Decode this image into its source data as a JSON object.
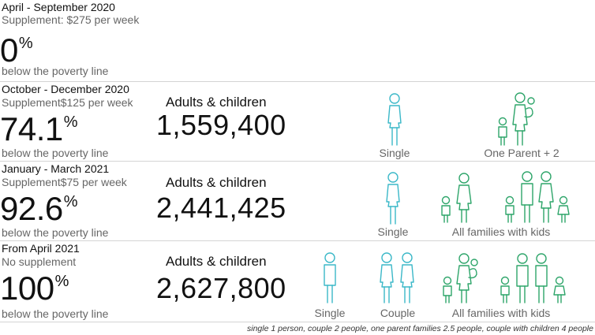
{
  "chart_data": {
    "type": "table",
    "unit_note": "below the poverty line",
    "rows": [
      {
        "period": "April - September 2020",
        "supplement": "Supplement: $275 per week",
        "percent": "0",
        "percent_unit": "%",
        "below": "below the poverty line",
        "count_header": "",
        "count": "",
        "groups": []
      },
      {
        "period": "October - December 2020",
        "supplement": "Supplement$125 per week",
        "percent": "74.1",
        "percent_unit": "%",
        "below": "below the poverty line",
        "count_header": "Adults & children",
        "count": "1,559,400",
        "groups": [
          "Single",
          "One Parent + 2"
        ]
      },
      {
        "period": "January - March 2021",
        "supplement": "Supplement$75 per week",
        "percent": "92.6",
        "percent_unit": "%",
        "below": "below the poverty line",
        "count_header": "Adults & children",
        "count": "2,441,425",
        "groups": [
          "Single",
          "All families with kids"
        ]
      },
      {
        "period": "From April 2021",
        "supplement": "No supplement",
        "percent": "100",
        "percent_unit": "%",
        "below": "below the poverty line",
        "count_header": "Adults & children",
        "count": "2,627,800",
        "groups": [
          "Single",
          "Couple",
          "All families with kids"
        ]
      }
    ],
    "footnote": "single 1 person, couple 2 people, one parent families 2.5 people, couple with children 4 people"
  },
  "colors": {
    "single_icon": "#3bb8c8",
    "family_icon": "#2ea56a",
    "separator": "#d4d4d4"
  },
  "icons": [
    "woman-icon",
    "man-icon",
    "child-icon",
    "baby-icon"
  ]
}
